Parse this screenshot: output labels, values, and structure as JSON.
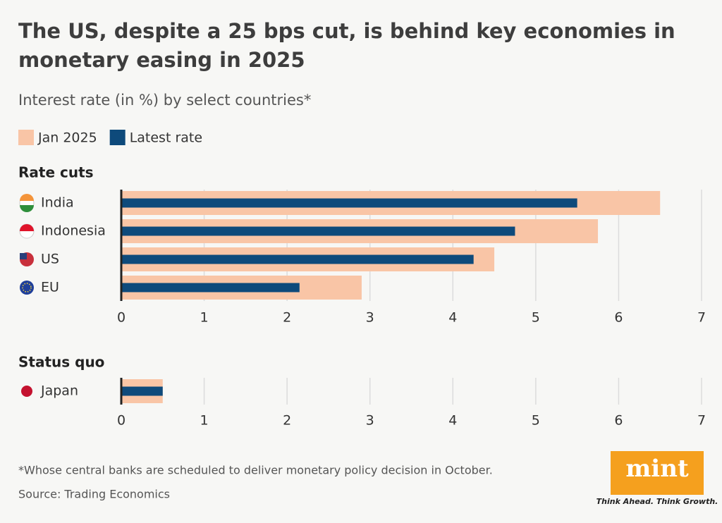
{
  "title": "The US, despite a 25 bps cut, is behind key economies in monetary easing in 2025",
  "subtitle": "Interest rate (in %) by select countries*",
  "footnote": "*Whose central banks are scheduled to deliver monetary policy decision in October.",
  "source": "Source: Trading Economics",
  "logo": {
    "name": "mint",
    "tagline": "Think Ahead. Think Growth."
  },
  "chart_data": [
    {
      "type": "bar",
      "orientation": "horizontal",
      "title": "Rate cuts",
      "categories": [
        "India",
        "Indonesia",
        "US",
        "EU"
      ],
      "series": [
        {
          "name": "Jan 2025",
          "color": "#f9c5a6",
          "values": [
            6.5,
            5.75,
            4.5,
            2.9
          ]
        },
        {
          "name": "Latest rate",
          "color": "#0e4a7b",
          "values": [
            5.5,
            4.75,
            4.25,
            2.15
          ]
        }
      ],
      "xlim": [
        0,
        7
      ],
      "xticks": [
        0,
        1,
        2,
        3,
        4,
        5,
        6,
        7
      ],
      "grid": true
    },
    {
      "type": "bar",
      "orientation": "horizontal",
      "title": "Status quo",
      "categories": [
        "Japan"
      ],
      "series": [
        {
          "color": "#f9c5a6",
          "values": [
            0.5
          ]
        },
        {
          "color": "#0e4a7b",
          "values": [
            0.5
          ]
        }
      ],
      "xlim": [
        0,
        7
      ],
      "xticks": [
        0,
        1,
        2,
        3,
        4,
        5,
        6,
        7
      ],
      "grid": true
    }
  ]
}
